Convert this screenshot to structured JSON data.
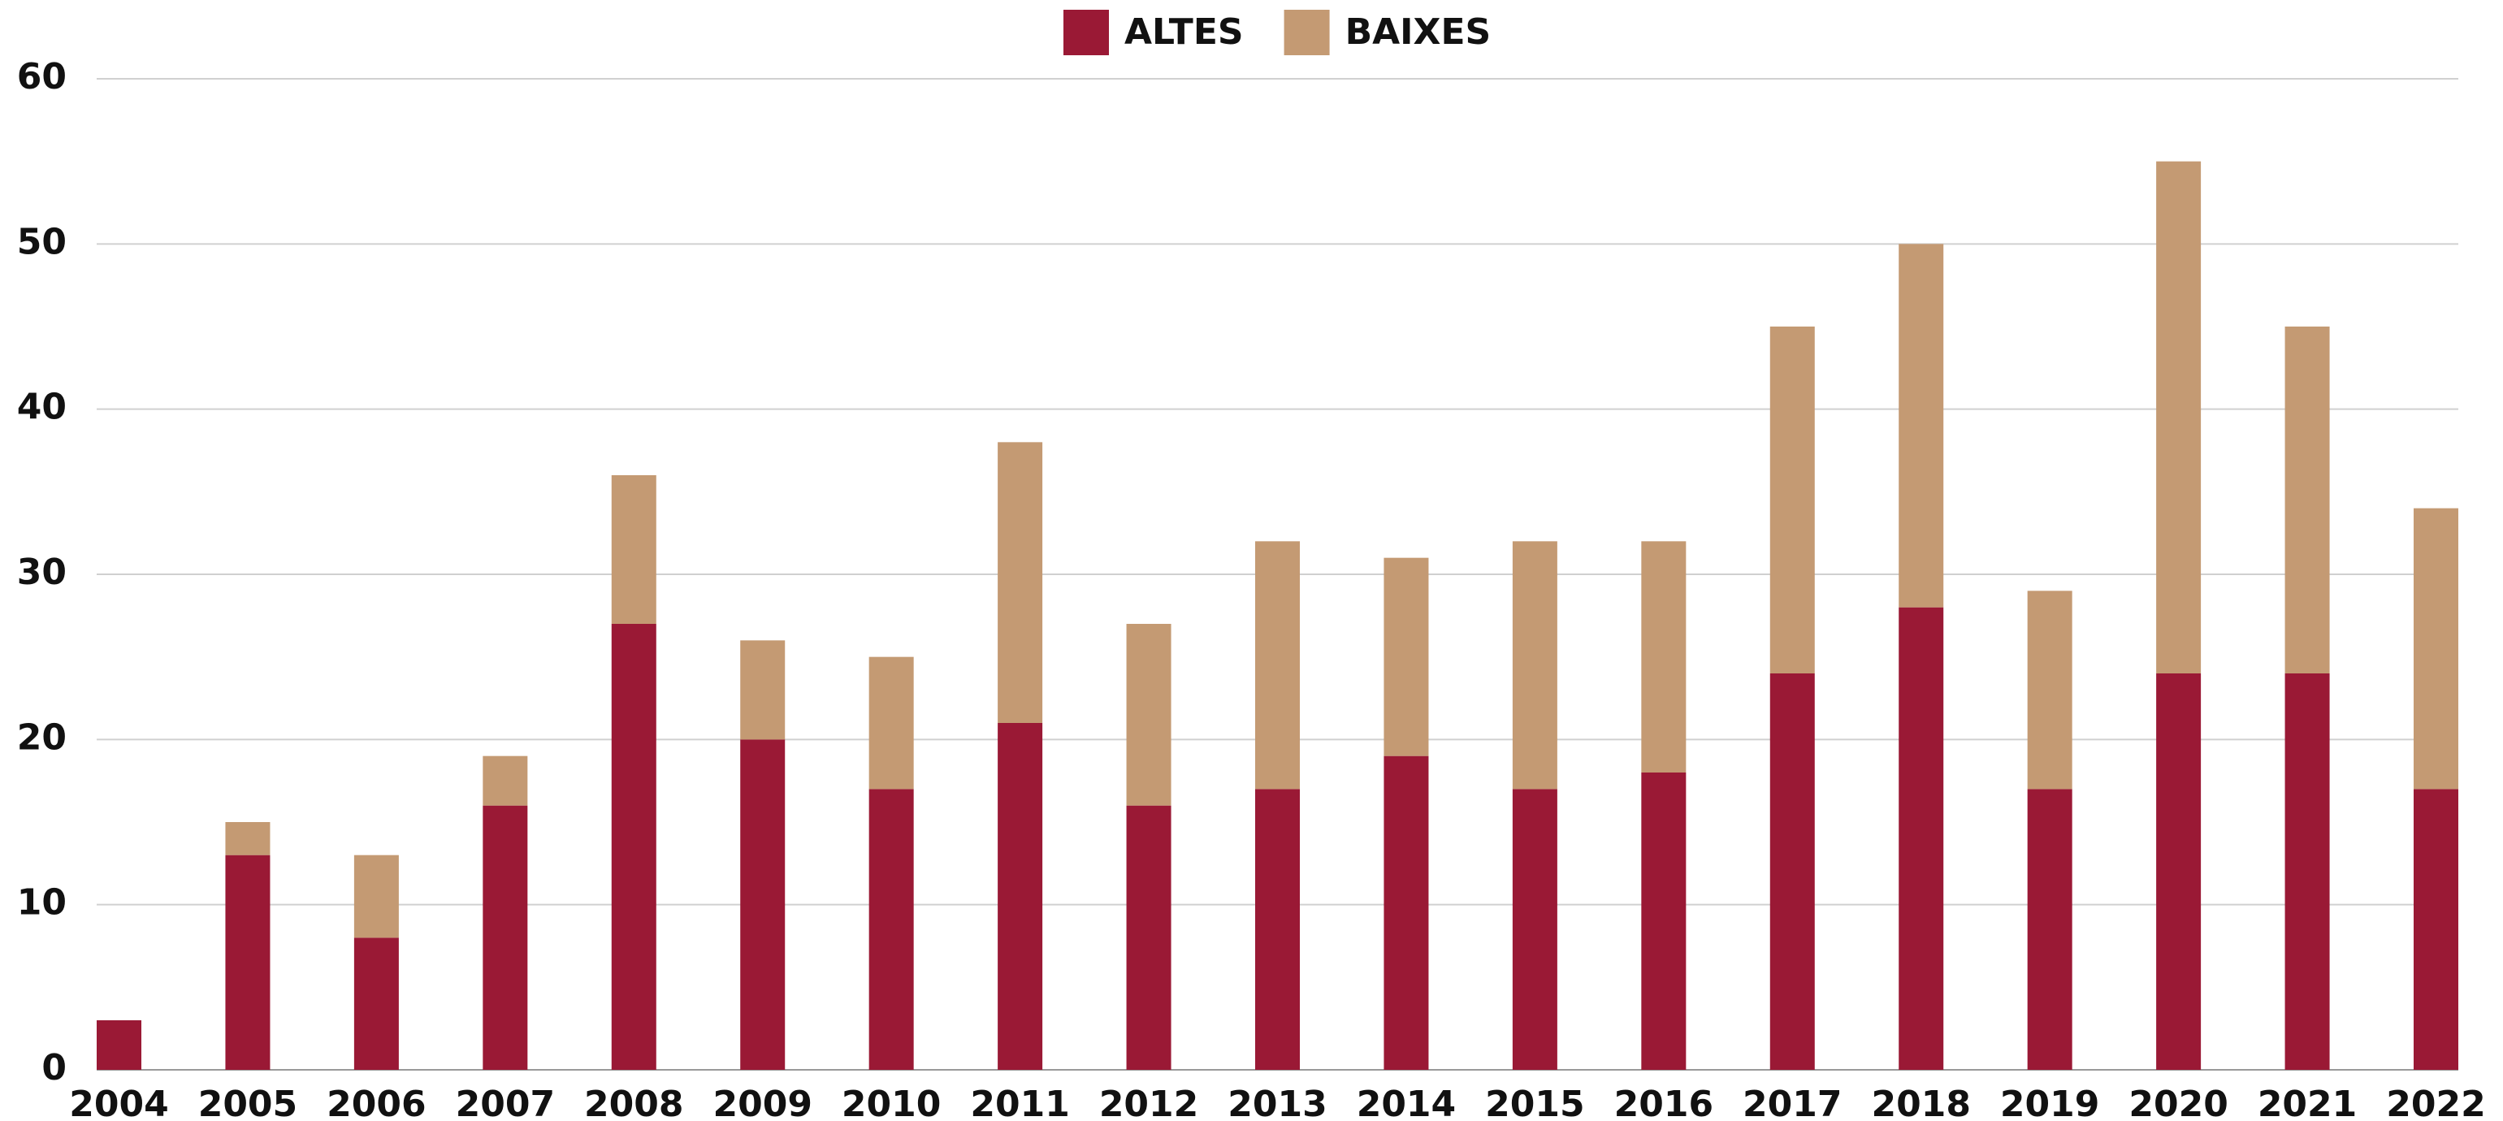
{
  "chart_data": {
    "type": "stacked_bar",
    "categories": [
      "2004",
      "2005",
      "2006",
      "2007",
      "2008",
      "2009",
      "2010",
      "2011",
      "2012",
      "2013",
      "2014",
      "2015",
      "2016",
      "2017",
      "2018",
      "2019",
      "2020",
      "2021",
      "2022"
    ],
    "series": [
      {
        "name": "ALTES",
        "color": "#9a1935",
        "values": [
          3,
          13,
          8,
          16,
          27,
          20,
          17,
          21,
          16,
          17,
          19,
          17,
          18,
          24,
          28,
          17,
          24,
          24,
          17
        ]
      },
      {
        "name": "BAIXES",
        "color": "#c49a73",
        "values": [
          0,
          2,
          5,
          3,
          9,
          6,
          8,
          17,
          11,
          15,
          12,
          15,
          14,
          21,
          22,
          12,
          31,
          21,
          17
        ]
      }
    ],
    "ylim": [
      0,
      60
    ],
    "yticks": [
      0,
      10,
      20,
      30,
      40,
      50,
      60
    ],
    "grid": true,
    "legend": "top"
  }
}
